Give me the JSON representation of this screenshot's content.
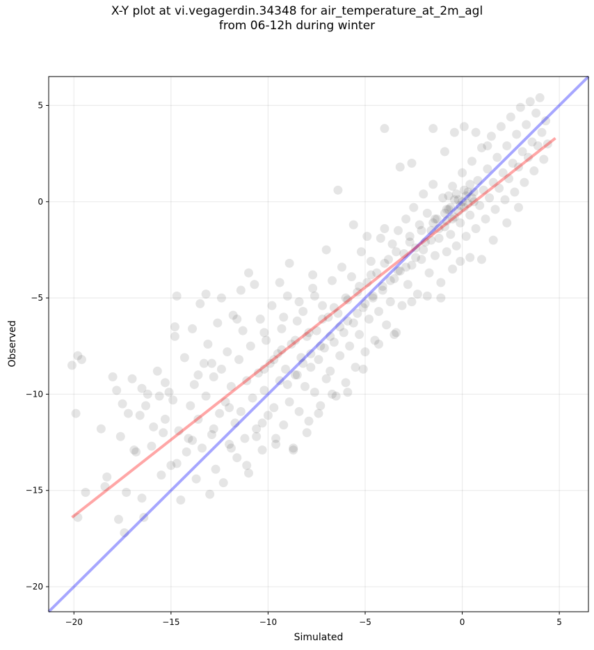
{
  "chart_data": {
    "type": "scatter",
    "title": "X-Y plot at vi.vegagerdin.34348 for air_temperature_at_2m_agl",
    "subtitle": "from 06-12h during winter",
    "xlabel": "Simulated",
    "ylabel": "Observed",
    "xlim": [
      -21.3,
      6.5
    ],
    "ylim": [
      -21.3,
      6.5
    ],
    "x_ticks": [
      -20,
      -15,
      -10,
      -5,
      0,
      5
    ],
    "y_ticks": [
      -20,
      -15,
      -10,
      -5,
      0,
      5
    ],
    "x_tick_labels": [
      "−20",
      "−15",
      "−10",
      "−5",
      "0",
      "5"
    ],
    "y_tick_labels": [
      "−20",
      "−15",
      "−10",
      "−5",
      "0",
      "5"
    ],
    "grid": true,
    "point_color": "#000000",
    "point_opacity": 0.1,
    "reference_line": {
      "description": "1:1",
      "color": "#0000ff",
      "x": [
        -21.3,
        6.5
      ],
      "y": [
        -21.3,
        6.5
      ]
    },
    "fit_line": {
      "color": "#ff0000",
      "x": [
        -20.1,
        4.8
      ],
      "y": [
        -16.4,
        3.3
      ]
    },
    "points": [
      [
        -20.1,
        -8.5
      ],
      [
        -19.8,
        -8.0
      ],
      [
        -19.6,
        -8.2
      ],
      [
        -19.9,
        -11.0
      ],
      [
        -19.4,
        -15.1
      ],
      [
        -19.8,
        -16.4
      ],
      [
        -18.6,
        -11.8
      ],
      [
        -18.3,
        -14.3
      ],
      [
        -18.4,
        -14.8
      ],
      [
        -18.0,
        -9.1
      ],
      [
        -17.8,
        -9.8
      ],
      [
        -17.7,
        -16.5
      ],
      [
        -17.6,
        -12.2
      ],
      [
        -17.5,
        -10.5
      ],
      [
        -17.3,
        -15.1
      ],
      [
        -17.4,
        -17.2
      ],
      [
        -17.2,
        -11.0
      ],
      [
        -17.0,
        -9.2
      ],
      [
        -16.8,
        -13.0
      ],
      [
        -16.6,
        -11.1
      ],
      [
        -16.5,
        -9.7
      ],
      [
        -16.3,
        -10.6
      ],
      [
        -16.5,
        -15.4
      ],
      [
        -16.4,
        -16.4
      ],
      [
        -16.0,
        -12.7
      ],
      [
        -15.9,
        -11.7
      ],
      [
        -15.7,
        -8.8
      ],
      [
        -15.6,
        -10.1
      ],
      [
        -15.5,
        -14.2
      ],
      [
        -15.4,
        -12.0
      ],
      [
        -15.3,
        -9.4
      ],
      [
        -15.0,
        -13.7
      ],
      [
        -14.9,
        -10.3
      ],
      [
        -14.8,
        -7.0
      ],
      [
        -14.7,
        -4.9
      ],
      [
        -14.6,
        -11.9
      ],
      [
        -14.5,
        -15.5
      ],
      [
        -14.3,
        -8.1
      ],
      [
        -14.2,
        -13.0
      ],
      [
        -14.1,
        -12.3
      ],
      [
        -14.0,
        -10.6
      ],
      [
        -13.9,
        -6.6
      ],
      [
        -13.8,
        -9.5
      ],
      [
        -13.7,
        -14.4
      ],
      [
        -13.6,
        -11.3
      ],
      [
        -13.5,
        -5.3
      ],
      [
        -13.4,
        -12.8
      ],
      [
        -13.3,
        -8.4
      ],
      [
        -13.2,
        -10.1
      ],
      [
        -13.1,
        -7.4
      ],
      [
        -13.0,
        -15.2
      ],
      [
        -12.9,
        -12.1
      ],
      [
        -12.8,
        -9.1
      ],
      [
        -12.7,
        -13.9
      ],
      [
        -12.6,
        -6.3
      ],
      [
        -12.5,
        -11.0
      ],
      [
        -12.4,
        -8.7
      ],
      [
        -12.3,
        -14.6
      ],
      [
        -12.2,
        -10.4
      ],
      [
        -12.1,
        -7.8
      ],
      [
        -12.0,
        -12.6
      ],
      [
        -11.9,
        -9.6
      ],
      [
        -11.8,
        -5.9
      ],
      [
        -11.7,
        -11.5
      ],
      [
        -11.6,
        -13.3
      ],
      [
        -11.5,
        -8.2
      ],
      [
        -11.4,
        -10.9
      ],
      [
        -11.3,
        -6.7
      ],
      [
        -11.2,
        -12.3
      ],
      [
        -11.1,
        -9.3
      ],
      [
        -11.0,
        -14.1
      ],
      [
        -10.9,
        -7.5
      ],
      [
        -10.8,
        -10.2
      ],
      [
        -10.7,
        -4.3
      ],
      [
        -10.6,
        -11.8
      ],
      [
        -10.5,
        -8.9
      ],
      [
        -10.4,
        -6.1
      ],
      [
        -10.3,
        -12.9
      ],
      [
        -10.2,
        -9.8
      ],
      [
        -10.1,
        -7.2
      ],
      [
        -10.0,
        -11.1
      ],
      [
        -9.9,
        -8.4
      ],
      [
        -9.8,
        -5.4
      ],
      [
        -9.7,
        -10.7
      ],
      [
        -9.6,
        -12.3
      ],
      [
        -9.5,
        -7.9
      ],
      [
        -9.4,
        -9.3
      ],
      [
        -9.3,
        -6.6
      ],
      [
        -9.2,
        -11.6
      ],
      [
        -9.1,
        -8.7
      ],
      [
        -9.0,
        -4.9
      ],
      [
        -8.9,
        -10.4
      ],
      [
        -8.8,
        -7.4
      ],
      [
        -8.7,
        -12.8
      ],
      [
        -8.6,
        -9.0
      ],
      [
        -8.5,
        -6.2
      ],
      [
        -8.4,
        -10.9
      ],
      [
        -8.3,
        -8.1
      ],
      [
        -8.2,
        -5.7
      ],
      [
        -8.1,
        -9.6
      ],
      [
        -8.0,
        -7.0
      ],
      [
        -7.9,
        -11.4
      ],
      [
        -7.8,
        -8.6
      ],
      [
        -7.7,
        -4.5
      ],
      [
        -7.6,
        -9.9
      ],
      [
        -7.5,
        -6.7
      ],
      [
        -7.4,
        -8.2
      ],
      [
        -7.3,
        -10.6
      ],
      [
        -7.2,
        -5.4
      ],
      [
        -7.1,
        -7.6
      ],
      [
        -7.0,
        -9.2
      ],
      [
        -6.9,
        -6.0
      ],
      [
        -6.8,
        -8.8
      ],
      [
        -6.7,
        -4.1
      ],
      [
        -6.6,
        -7.3
      ],
      [
        -6.5,
        -10.1
      ],
      [
        -6.4,
        -5.8
      ],
      [
        -6.3,
        -8.0
      ],
      [
        -6.2,
        -3.4
      ],
      [
        -6.1,
        -6.8
      ],
      [
        -6.0,
        -9.4
      ],
      [
        -5.9,
        -5.1
      ],
      [
        -5.8,
        -7.5
      ],
      [
        -5.7,
        -3.9
      ],
      [
        -5.6,
        -6.3
      ],
      [
        -5.5,
        -8.6
      ],
      [
        -5.4,
        -4.7
      ],
      [
        -5.3,
        -6.9
      ],
      [
        -5.2,
        -2.6
      ],
      [
        -5.1,
        -5.5
      ],
      [
        -5.0,
        -7.8
      ],
      [
        -4.9,
        -4.2
      ],
      [
        -4.8,
        -6.1
      ],
      [
        -4.7,
        -3.1
      ],
      [
        -4.6,
        -5.0
      ],
      [
        -4.5,
        -7.2
      ],
      [
        -4.4,
        -3.7
      ],
      [
        -4.3,
        -5.7
      ],
      [
        -4.2,
        -1.9
      ],
      [
        -4.1,
        -4.4
      ],
      [
        -4.0,
        3.8
      ],
      [
        -3.9,
        -6.4
      ],
      [
        -3.8,
        -3.0
      ],
      [
        -3.7,
        -5.2
      ],
      [
        -3.6,
        -2.2
      ],
      [
        -3.5,
        -4.0
      ],
      [
        -3.4,
        -6.8
      ],
      [
        -3.3,
        -1.5
      ],
      [
        -3.2,
        -3.6
      ],
      [
        -3.1,
        -5.4
      ],
      [
        -3.0,
        -2.7
      ],
      [
        -2.9,
        -0.9
      ],
      [
        -2.8,
        -4.3
      ],
      [
        -2.7,
        -1.8
      ],
      [
        -2.6,
        -3.3
      ],
      [
        -2.5,
        -0.3
      ],
      [
        -2.4,
        -2.4
      ],
      [
        -2.3,
        -4.8
      ],
      [
        -2.2,
        -1.2
      ],
      [
        -2.1,
        -3.0
      ],
      [
        -2.0,
        0.4
      ],
      [
        -1.9,
        -2.1
      ],
      [
        -1.8,
        -0.6
      ],
      [
        -1.7,
        -3.7
      ],
      [
        -1.6,
        -1.5
      ],
      [
        -1.5,
        0.9
      ],
      [
        -1.4,
        -2.8
      ],
      [
        -1.3,
        -0.9
      ],
      [
        -1.2,
        -1.9
      ],
      [
        -1.1,
        -4.2
      ],
      [
        -1.0,
        0.2
      ],
      [
        -0.9,
        -1.3
      ],
      [
        -0.8,
        -2.6
      ],
      [
        -0.7,
        -0.4
      ],
      [
        -0.6,
        -1.7
      ],
      [
        -0.5,
        0.8
      ],
      [
        -0.4,
        -0.8
      ],
      [
        -0.3,
        -2.3
      ],
      [
        -0.2,
        0.1
      ],
      [
        -0.1,
        -1.1
      ],
      [
        0.0,
        1.5
      ],
      [
        0.1,
        -0.3
      ],
      [
        0.2,
        -1.8
      ],
      [
        0.3,
        0.5
      ],
      [
        0.4,
        -0.7
      ],
      [
        0.5,
        2.1
      ],
      [
        0.6,
        0.0
      ],
      [
        0.7,
        -1.4
      ],
      [
        0.8,
        1.1
      ],
      [
        0.9,
        -0.2
      ],
      [
        1.0,
        2.8
      ],
      [
        1.1,
        0.6
      ],
      [
        1.2,
        -0.9
      ],
      [
        1.3,
        1.7
      ],
      [
        1.4,
        0.2
      ],
      [
        1.5,
        3.4
      ],
      [
        1.6,
        1.0
      ],
      [
        1.7,
        -0.4
      ],
      [
        1.8,
        2.3
      ],
      [
        1.9,
        0.7
      ],
      [
        2.0,
        3.9
      ],
      [
        2.1,
        1.5
      ],
      [
        2.2,
        0.1
      ],
      [
        2.3,
        2.9
      ],
      [
        2.4,
        1.2
      ],
      [
        2.5,
        4.4
      ],
      [
        2.6,
        2.0
      ],
      [
        2.7,
        0.5
      ],
      [
        2.8,
        3.5
      ],
      [
        2.9,
        1.8
      ],
      [
        3.0,
        4.9
      ],
      [
        3.1,
        2.6
      ],
      [
        3.2,
        1.0
      ],
      [
        3.3,
        4.0
      ],
      [
        3.4,
        2.3
      ],
      [
        3.5,
        5.2
      ],
      [
        3.6,
        3.1
      ],
      [
        3.7,
        1.6
      ],
      [
        3.8,
        4.6
      ],
      [
        3.9,
        2.9
      ],
      [
        4.0,
        5.4
      ],
      [
        4.1,
        3.6
      ],
      [
        4.2,
        2.2
      ],
      [
        4.3,
        4.2
      ],
      [
        4.4,
        3.0
      ],
      [
        -14.8,
        -6.5
      ],
      [
        -13.2,
        -4.8
      ],
      [
        -12.4,
        -5.0
      ],
      [
        -11.4,
        -4.6
      ],
      [
        -11.0,
        -3.7
      ],
      [
        -9.4,
        -4.2
      ],
      [
        -8.9,
        -3.2
      ],
      [
        -7.7,
        -3.8
      ],
      [
        -7.0,
        -2.5
      ],
      [
        -6.4,
        0.6
      ],
      [
        -5.6,
        -1.2
      ],
      [
        -4.9,
        -1.8
      ],
      [
        -4.0,
        -1.4
      ],
      [
        -3.2,
        1.8
      ],
      [
        -2.6,
        2.0
      ],
      [
        -1.5,
        3.8
      ],
      [
        -0.9,
        2.6
      ],
      [
        -0.4,
        3.6
      ],
      [
        0.1,
        3.9
      ],
      [
        0.7,
        3.6
      ],
      [
        1.3,
        2.9
      ],
      [
        -16.2,
        -10.0
      ],
      [
        -15.1,
        -9.9
      ],
      [
        -13.6,
        -9.0
      ],
      [
        -12.0,
        -10.7
      ],
      [
        -10.6,
        -12.2
      ],
      [
        -9.6,
        -12.6
      ],
      [
        -8.7,
        -12.9
      ],
      [
        -8.0,
        -12.0
      ],
      [
        -7.4,
        -11.0
      ],
      [
        -6.7,
        -10.0
      ],
      [
        -5.9,
        -9.9
      ],
      [
        -5.1,
        -8.7
      ],
      [
        -4.3,
        -7.4
      ],
      [
        -3.5,
        -6.9
      ],
      [
        -2.6,
        -5.2
      ],
      [
        -1.8,
        -4.9
      ],
      [
        -1.1,
        -5.0
      ],
      [
        -0.5,
        -3.5
      ],
      [
        -0.1,
        -3.1
      ],
      [
        0.4,
        -2.9
      ],
      [
        1.0,
        -3.0
      ],
      [
        1.6,
        -2.0
      ],
      [
        2.3,
        -1.1
      ],
      [
        2.9,
        -0.3
      ],
      [
        -0.3,
        0.4
      ],
      [
        0.0,
        0.0
      ],
      [
        0.2,
        0.3
      ],
      [
        -0.1,
        -0.2
      ],
      [
        0.3,
        -0.1
      ],
      [
        -0.4,
        0.1
      ],
      [
        0.1,
        0.6
      ],
      [
        -0.2,
        -0.5
      ],
      [
        0.5,
        0.2
      ],
      [
        -0.6,
        -0.3
      ],
      [
        0.4,
        0.9
      ],
      [
        -0.5,
        -0.9
      ],
      [
        -0.8,
        -1.0
      ],
      [
        -1.2,
        -1.4
      ],
      [
        -0.9,
        -0.6
      ],
      [
        -1.5,
        -1.1
      ],
      [
        -0.7,
        0.3
      ],
      [
        0.6,
        0.5
      ],
      [
        -9.0,
        -9.5
      ],
      [
        -8.5,
        -9.0
      ],
      [
        -8.2,
        -8.4
      ],
      [
        -7.8,
        -7.9
      ],
      [
        -7.3,
        -7.5
      ],
      [
        -6.8,
        -7.0
      ],
      [
        -6.3,
        -6.5
      ],
      [
        -5.9,
        -6.2
      ],
      [
        -5.4,
        -5.8
      ],
      [
        -5.0,
        -5.3
      ],
      [
        -4.6,
        -4.9
      ],
      [
        -4.1,
        -4.6
      ],
      [
        -3.7,
        -4.1
      ],
      [
        -3.3,
        -3.6
      ],
      [
        -2.9,
        -3.4
      ],
      [
        -2.4,
        -2.9
      ],
      [
        -2.0,
        -2.5
      ],
      [
        -1.6,
        -2.0
      ],
      [
        -10.2,
        -8.7
      ],
      [
        -9.7,
        -8.2
      ],
      [
        -9.3,
        -7.7
      ],
      [
        -8.6,
        -7.2
      ],
      [
        -7.9,
        -6.8
      ],
      [
        -7.2,
        -6.1
      ],
      [
        -6.6,
        -5.5
      ],
      [
        -6.0,
        -5.0
      ],
      [
        -5.3,
        -4.4
      ],
      [
        -4.7,
        -3.8
      ],
      [
        -4.0,
        -3.2
      ],
      [
        -3.4,
        -2.6
      ],
      [
        -2.7,
        -2.1
      ],
      [
        -2.1,
        -1.5
      ],
      [
        -1.4,
        -0.9
      ],
      [
        -0.8,
        -0.4
      ],
      [
        -12.8,
        -11.8
      ],
      [
        -11.9,
        -12.8
      ],
      [
        -11.1,
        -13.7
      ],
      [
        -10.3,
        -11.5
      ],
      [
        -13.9,
        -12.4
      ],
      [
        -14.7,
        -13.6
      ],
      [
        -15.3,
        -11.3
      ],
      [
        -16.9,
        -12.9
      ],
      [
        -12.9,
        -8.4
      ],
      [
        -11.6,
        -6.1
      ],
      [
        -10.2,
        -6.8
      ],
      [
        -9.2,
        -6.0
      ],
      [
        -8.4,
        -5.2
      ],
      [
        -7.6,
        -4.9
      ]
    ]
  }
}
